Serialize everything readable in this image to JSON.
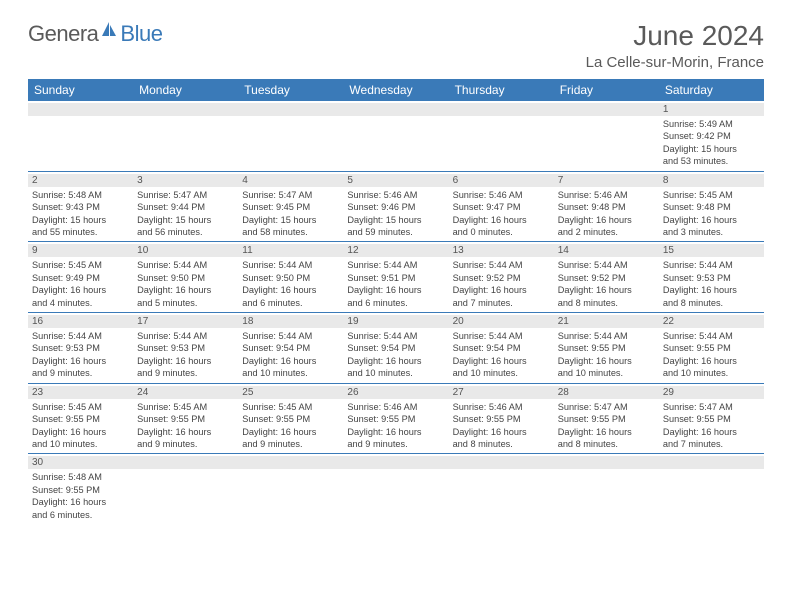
{
  "logo": {
    "text1": "Genera",
    "text2": "Blue"
  },
  "title": "June 2024",
  "location": "La Celle-sur-Morin, France",
  "colors": {
    "header_bg": "#3a7ab8",
    "header_text": "#ffffff",
    "daynum_bg": "#e9e9e9",
    "row_border": "#3a7ab8",
    "text": "#444444",
    "title_text": "#5a5a5a"
  },
  "weekdays": [
    "Sunday",
    "Monday",
    "Tuesday",
    "Wednesday",
    "Thursday",
    "Friday",
    "Saturday"
  ],
  "cells": [
    {
      "n": "",
      "sr": "",
      "ss": "",
      "d1": "",
      "d2": ""
    },
    {
      "n": "",
      "sr": "",
      "ss": "",
      "d1": "",
      "d2": ""
    },
    {
      "n": "",
      "sr": "",
      "ss": "",
      "d1": "",
      "d2": ""
    },
    {
      "n": "",
      "sr": "",
      "ss": "",
      "d1": "",
      "d2": ""
    },
    {
      "n": "",
      "sr": "",
      "ss": "",
      "d1": "",
      "d2": ""
    },
    {
      "n": "",
      "sr": "",
      "ss": "",
      "d1": "",
      "d2": ""
    },
    {
      "n": "1",
      "sr": "Sunrise: 5:49 AM",
      "ss": "Sunset: 9:42 PM",
      "d1": "Daylight: 15 hours",
      "d2": "and 53 minutes."
    },
    {
      "n": "2",
      "sr": "Sunrise: 5:48 AM",
      "ss": "Sunset: 9:43 PM",
      "d1": "Daylight: 15 hours",
      "d2": "and 55 minutes."
    },
    {
      "n": "3",
      "sr": "Sunrise: 5:47 AM",
      "ss": "Sunset: 9:44 PM",
      "d1": "Daylight: 15 hours",
      "d2": "and 56 minutes."
    },
    {
      "n": "4",
      "sr": "Sunrise: 5:47 AM",
      "ss": "Sunset: 9:45 PM",
      "d1": "Daylight: 15 hours",
      "d2": "and 58 minutes."
    },
    {
      "n": "5",
      "sr": "Sunrise: 5:46 AM",
      "ss": "Sunset: 9:46 PM",
      "d1": "Daylight: 15 hours",
      "d2": "and 59 minutes."
    },
    {
      "n": "6",
      "sr": "Sunrise: 5:46 AM",
      "ss": "Sunset: 9:47 PM",
      "d1": "Daylight: 16 hours",
      "d2": "and 0 minutes."
    },
    {
      "n": "7",
      "sr": "Sunrise: 5:46 AM",
      "ss": "Sunset: 9:48 PM",
      "d1": "Daylight: 16 hours",
      "d2": "and 2 minutes."
    },
    {
      "n": "8",
      "sr": "Sunrise: 5:45 AM",
      "ss": "Sunset: 9:48 PM",
      "d1": "Daylight: 16 hours",
      "d2": "and 3 minutes."
    },
    {
      "n": "9",
      "sr": "Sunrise: 5:45 AM",
      "ss": "Sunset: 9:49 PM",
      "d1": "Daylight: 16 hours",
      "d2": "and 4 minutes."
    },
    {
      "n": "10",
      "sr": "Sunrise: 5:44 AM",
      "ss": "Sunset: 9:50 PM",
      "d1": "Daylight: 16 hours",
      "d2": "and 5 minutes."
    },
    {
      "n": "11",
      "sr": "Sunrise: 5:44 AM",
      "ss": "Sunset: 9:50 PM",
      "d1": "Daylight: 16 hours",
      "d2": "and 6 minutes."
    },
    {
      "n": "12",
      "sr": "Sunrise: 5:44 AM",
      "ss": "Sunset: 9:51 PM",
      "d1": "Daylight: 16 hours",
      "d2": "and 6 minutes."
    },
    {
      "n": "13",
      "sr": "Sunrise: 5:44 AM",
      "ss": "Sunset: 9:52 PM",
      "d1": "Daylight: 16 hours",
      "d2": "and 7 minutes."
    },
    {
      "n": "14",
      "sr": "Sunrise: 5:44 AM",
      "ss": "Sunset: 9:52 PM",
      "d1": "Daylight: 16 hours",
      "d2": "and 8 minutes."
    },
    {
      "n": "15",
      "sr": "Sunrise: 5:44 AM",
      "ss": "Sunset: 9:53 PM",
      "d1": "Daylight: 16 hours",
      "d2": "and 8 minutes."
    },
    {
      "n": "16",
      "sr": "Sunrise: 5:44 AM",
      "ss": "Sunset: 9:53 PM",
      "d1": "Daylight: 16 hours",
      "d2": "and 9 minutes."
    },
    {
      "n": "17",
      "sr": "Sunrise: 5:44 AM",
      "ss": "Sunset: 9:53 PM",
      "d1": "Daylight: 16 hours",
      "d2": "and 9 minutes."
    },
    {
      "n": "18",
      "sr": "Sunrise: 5:44 AM",
      "ss": "Sunset: 9:54 PM",
      "d1": "Daylight: 16 hours",
      "d2": "and 10 minutes."
    },
    {
      "n": "19",
      "sr": "Sunrise: 5:44 AM",
      "ss": "Sunset: 9:54 PM",
      "d1": "Daylight: 16 hours",
      "d2": "and 10 minutes."
    },
    {
      "n": "20",
      "sr": "Sunrise: 5:44 AM",
      "ss": "Sunset: 9:54 PM",
      "d1": "Daylight: 16 hours",
      "d2": "and 10 minutes."
    },
    {
      "n": "21",
      "sr": "Sunrise: 5:44 AM",
      "ss": "Sunset: 9:55 PM",
      "d1": "Daylight: 16 hours",
      "d2": "and 10 minutes."
    },
    {
      "n": "22",
      "sr": "Sunrise: 5:44 AM",
      "ss": "Sunset: 9:55 PM",
      "d1": "Daylight: 16 hours",
      "d2": "and 10 minutes."
    },
    {
      "n": "23",
      "sr": "Sunrise: 5:45 AM",
      "ss": "Sunset: 9:55 PM",
      "d1": "Daylight: 16 hours",
      "d2": "and 10 minutes."
    },
    {
      "n": "24",
      "sr": "Sunrise: 5:45 AM",
      "ss": "Sunset: 9:55 PM",
      "d1": "Daylight: 16 hours",
      "d2": "and 9 minutes."
    },
    {
      "n": "25",
      "sr": "Sunrise: 5:45 AM",
      "ss": "Sunset: 9:55 PM",
      "d1": "Daylight: 16 hours",
      "d2": "and 9 minutes."
    },
    {
      "n": "26",
      "sr": "Sunrise: 5:46 AM",
      "ss": "Sunset: 9:55 PM",
      "d1": "Daylight: 16 hours",
      "d2": "and 9 minutes."
    },
    {
      "n": "27",
      "sr": "Sunrise: 5:46 AM",
      "ss": "Sunset: 9:55 PM",
      "d1": "Daylight: 16 hours",
      "d2": "and 8 minutes."
    },
    {
      "n": "28",
      "sr": "Sunrise: 5:47 AM",
      "ss": "Sunset: 9:55 PM",
      "d1": "Daylight: 16 hours",
      "d2": "and 8 minutes."
    },
    {
      "n": "29",
      "sr": "Sunrise: 5:47 AM",
      "ss": "Sunset: 9:55 PM",
      "d1": "Daylight: 16 hours",
      "d2": "and 7 minutes."
    },
    {
      "n": "30",
      "sr": "Sunrise: 5:48 AM",
      "ss": "Sunset: 9:55 PM",
      "d1": "Daylight: 16 hours",
      "d2": "and 6 minutes."
    },
    {
      "n": "",
      "sr": "",
      "ss": "",
      "d1": "",
      "d2": ""
    },
    {
      "n": "",
      "sr": "",
      "ss": "",
      "d1": "",
      "d2": ""
    },
    {
      "n": "",
      "sr": "",
      "ss": "",
      "d1": "",
      "d2": ""
    },
    {
      "n": "",
      "sr": "",
      "ss": "",
      "d1": "",
      "d2": ""
    },
    {
      "n": "",
      "sr": "",
      "ss": "",
      "d1": "",
      "d2": ""
    },
    {
      "n": "",
      "sr": "",
      "ss": "",
      "d1": "",
      "d2": ""
    }
  ]
}
